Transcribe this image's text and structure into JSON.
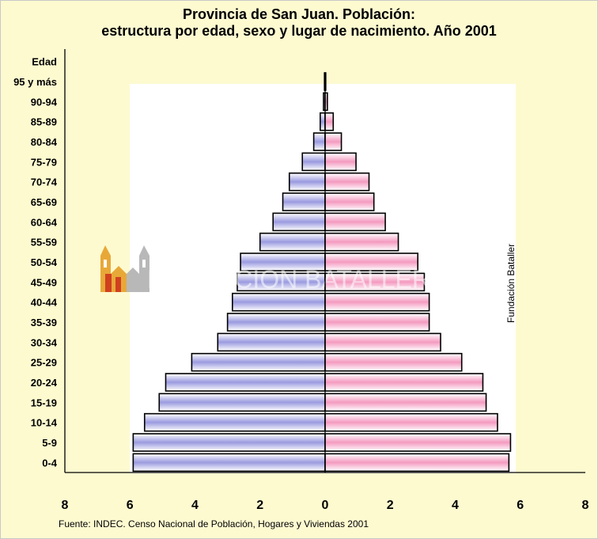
{
  "chart_data": {
    "type": "bar",
    "title_line1": "Provincia de San Juan. Población:",
    "title_line2": "estructura por edad, sexo y lugar de nacimiento. Año 2001",
    "ylabel": "Edad",
    "categories": [
      "0-4",
      "5-9",
      "10-14",
      "15-19",
      "20-24",
      "25-29",
      "30-34",
      "35-39",
      "40-44",
      "45-49",
      "50-54",
      "55-59",
      "60-64",
      "65-69",
      "70-74",
      "75-79",
      "80-84",
      "85-89",
      "90-94",
      "95 y más"
    ],
    "series": [
      {
        "values": [
          5.9,
          5.9,
          5.55,
          5.1,
          4.9,
          4.1,
          3.3,
          3.0,
          2.85,
          2.7,
          2.6,
          2.0,
          1.6,
          1.3,
          1.1,
          0.7,
          0.35,
          0.15,
          0.05,
          0.02
        ],
        "color": "#9a9ae0"
      },
      {
        "values": [
          5.65,
          5.7,
          5.3,
          4.95,
          4.85,
          4.2,
          3.55,
          3.2,
          3.2,
          3.05,
          2.85,
          2.25,
          1.85,
          1.5,
          1.35,
          0.95,
          0.5,
          0.25,
          0.07,
          0.02
        ],
        "color": "#f49ac0"
      }
    ],
    "xticks": [
      "8",
      "6",
      "4",
      "2",
      "0",
      "2",
      "4",
      "6",
      "8"
    ],
    "xlim": [
      -8,
      8
    ]
  },
  "watermark_text": "FUNDACION BATALLER",
  "side_label": "Fundación Bataller",
  "source": "Fuente: INDEC. Censo Nacional de Población, Hogares y Viviendas 2001"
}
